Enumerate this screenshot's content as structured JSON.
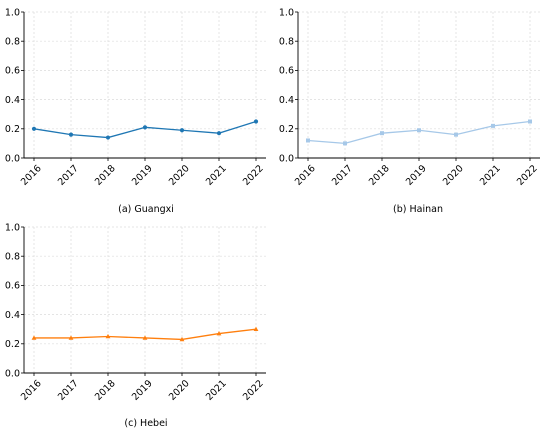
{
  "chart_data": [
    {
      "type": "line",
      "caption": "(a) Guangxi",
      "x": [
        "2016",
        "2017",
        "2018",
        "2019",
        "2020",
        "2021",
        "2022"
      ],
      "series": [
        {
          "values": [
            0.2,
            0.16,
            0.14,
            0.21,
            0.19,
            0.17,
            0.25
          ],
          "color": "#1f77b4",
          "marker": "circle"
        }
      ],
      "ylim": [
        0,
        1.0
      ],
      "yticks": [
        "0.0",
        "0.2",
        "0.4",
        "0.6",
        "0.8",
        "1.0"
      ],
      "grid": true
    },
    {
      "type": "line",
      "caption": "(b) Hainan",
      "x": [
        "2016",
        "2017",
        "2018",
        "2019",
        "2020",
        "2021",
        "2022"
      ],
      "series": [
        {
          "values": [
            0.12,
            0.1,
            0.17,
            0.19,
            0.16,
            0.22,
            0.25
          ],
          "color": "#a6c8e8",
          "marker": "square"
        }
      ],
      "ylim": [
        0,
        1.0
      ],
      "yticks": [
        "0.0",
        "0.2",
        "0.4",
        "0.6",
        "0.8",
        "1.0"
      ],
      "grid": true
    },
    {
      "type": "line",
      "caption": "(c) Hebei",
      "x": [
        "2016",
        "2017",
        "2018",
        "2019",
        "2020",
        "2021",
        "2022"
      ],
      "series": [
        {
          "values": [
            0.24,
            0.24,
            0.25,
            0.24,
            0.23,
            0.27,
            0.3
          ],
          "color": "#ff7f0e",
          "marker": "triangle"
        }
      ],
      "ylim": [
        0,
        1.0
      ],
      "yticks": [
        "0.0",
        "0.2",
        "0.4",
        "0.6",
        "0.8",
        "1.0"
      ],
      "grid": true
    }
  ]
}
